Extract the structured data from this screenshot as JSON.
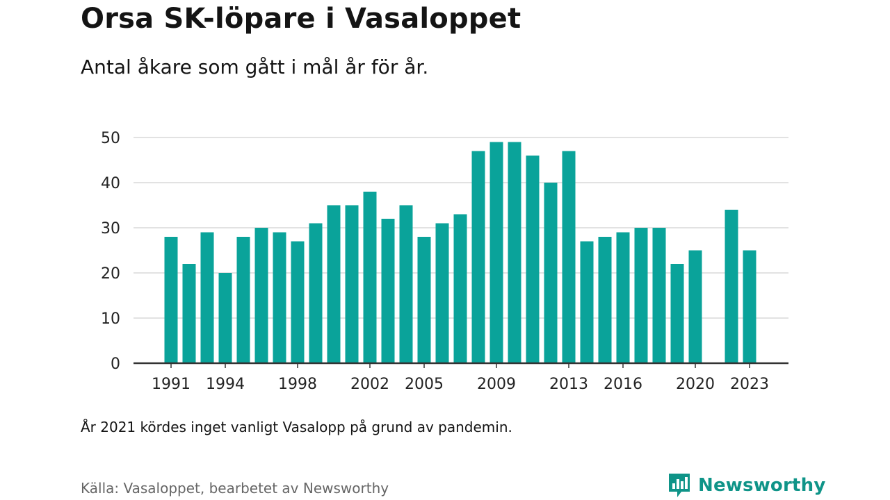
{
  "header": {
    "title": "Orsa SK-löpare i Vasaloppet",
    "subtitle": "Antal åkare som gått i mål år för år."
  },
  "footer": {
    "note": "År 2021 kördes inget vanligt Vasalopp på grund av pandemin.",
    "source": "Källa: Vasaloppet, bearbetet av Newsworthy",
    "brand": "Newsworthy",
    "brand_icon": "newsworthy-logo-icon"
  },
  "colors": {
    "bar": "#0aa39a",
    "grid": "#d9d9d9",
    "axis": "#333333",
    "brand": "#0f9488"
  },
  "chart_data": {
    "type": "bar",
    "title": "Orsa SK-löpare i Vasaloppet",
    "xlabel": "",
    "ylabel": "",
    "ylim": [
      0,
      50
    ],
    "yticks": [
      0,
      10,
      20,
      30,
      40,
      50
    ],
    "grid": true,
    "categories": [
      1991,
      1992,
      1993,
      1994,
      1995,
      1996,
      1997,
      1998,
      1999,
      2000,
      2001,
      2002,
      2003,
      2004,
      2005,
      2006,
      2007,
      2008,
      2009,
      2010,
      2011,
      2012,
      2013,
      2014,
      2015,
      2016,
      2017,
      2018,
      2019,
      2020,
      2021,
      2022,
      2023
    ],
    "xticks": [
      1991,
      1994,
      1998,
      2002,
      2005,
      2009,
      2013,
      2016,
      2020,
      2023
    ],
    "values": [
      28,
      22,
      29,
      20,
      28,
      30,
      29,
      27,
      31,
      35,
      35,
      38,
      32,
      35,
      28,
      31,
      33,
      47,
      49,
      49,
      46,
      40,
      47,
      27,
      28,
      29,
      30,
      30,
      22,
      25,
      null,
      34,
      25
    ]
  }
}
